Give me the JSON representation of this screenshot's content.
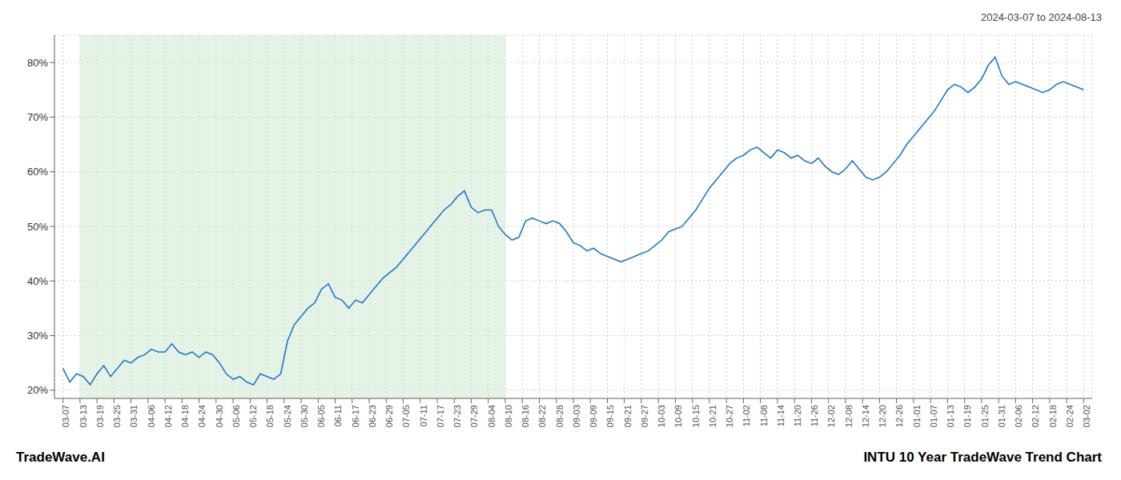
{
  "chart_data": {
    "type": "line",
    "title": "INTU 10 Year TradeWave Trend Chart",
    "subtitle": "2024-03-07 to 2024-08-13",
    "annotations": [
      "TradeWave.AI"
    ],
    "color": "#2176c7",
    "grid": true,
    "shade": {
      "x": [
        1,
        26
      ],
      "color": "#d5ecd9"
    },
    "xlim": [
      -0.5,
      60.5
    ],
    "xticks": [
      {
        "value": 0,
        "label": "03-07"
      },
      {
        "value": 1,
        "label": "03-13"
      },
      {
        "value": 2,
        "label": "03-19"
      },
      {
        "value": 3,
        "label": "03-25"
      },
      {
        "value": 4,
        "label": "03-31"
      },
      {
        "value": 5,
        "label": "04-06"
      },
      {
        "value": 6,
        "label": "04-12"
      },
      {
        "value": 7,
        "label": "04-18"
      },
      {
        "value": 8,
        "label": "04-24"
      },
      {
        "value": 9,
        "label": "04-30"
      },
      {
        "value": 10,
        "label": "05-06"
      },
      {
        "value": 11,
        "label": "05-12"
      },
      {
        "value": 12,
        "label": "05-18"
      },
      {
        "value": 13,
        "label": "05-24"
      },
      {
        "value": 14,
        "label": "05-30"
      },
      {
        "value": 15,
        "label": "06-05"
      },
      {
        "value": 16,
        "label": "06-11"
      },
      {
        "value": 17,
        "label": "06-17"
      },
      {
        "value": 18,
        "label": "06-23"
      },
      {
        "value": 19,
        "label": "06-29"
      },
      {
        "value": 20,
        "label": "07-05"
      },
      {
        "value": 21,
        "label": "07-11"
      },
      {
        "value": 22,
        "label": "07-17"
      },
      {
        "value": 23,
        "label": "07-23"
      },
      {
        "value": 24,
        "label": "07-29"
      },
      {
        "value": 25,
        "label": "08-04"
      },
      {
        "value": 26,
        "label": "08-10"
      },
      {
        "value": 27,
        "label": "08-16"
      },
      {
        "value": 28,
        "label": "08-22"
      },
      {
        "value": 29,
        "label": "08-28"
      },
      {
        "value": 30,
        "label": "09-03"
      },
      {
        "value": 31,
        "label": "09-09"
      },
      {
        "value": 32,
        "label": "09-15"
      },
      {
        "value": 33,
        "label": "09-21"
      },
      {
        "value": 34,
        "label": "09-27"
      },
      {
        "value": 35,
        "label": "10-03"
      },
      {
        "value": 36,
        "label": "10-09"
      },
      {
        "value": 37,
        "label": "10-15"
      },
      {
        "value": 38,
        "label": "10-21"
      },
      {
        "value": 39,
        "label": "10-27"
      },
      {
        "value": 40,
        "label": "11-02"
      },
      {
        "value": 41,
        "label": "11-08"
      },
      {
        "value": 42,
        "label": "11-14"
      },
      {
        "value": 43,
        "label": "11-20"
      },
      {
        "value": 44,
        "label": "11-26"
      },
      {
        "value": 45,
        "label": "12-02"
      },
      {
        "value": 46,
        "label": "12-08"
      },
      {
        "value": 47,
        "label": "12-14"
      },
      {
        "value": 48,
        "label": "12-20"
      },
      {
        "value": 49,
        "label": "12-26"
      },
      {
        "value": 50,
        "label": "01-01"
      },
      {
        "value": 51,
        "label": "01-07"
      },
      {
        "value": 52,
        "label": "01-13"
      },
      {
        "value": 53,
        "label": "01-19"
      },
      {
        "value": 54,
        "label": "01-25"
      },
      {
        "value": 55,
        "label": "01-31"
      },
      {
        "value": 56,
        "label": "02-06"
      },
      {
        "value": 57,
        "label": "02-12"
      },
      {
        "value": 58,
        "label": "02-18"
      },
      {
        "value": 59,
        "label": "02-24"
      },
      {
        "value": 60,
        "label": "03-02"
      }
    ],
    "ylim": [
      18.5,
      85
    ],
    "yticks": [
      {
        "value": 20,
        "label": "20%"
      },
      {
        "value": 30,
        "label": "30%"
      },
      {
        "value": 40,
        "label": "40%"
      },
      {
        "value": 50,
        "label": "50%"
      },
      {
        "value": 60,
        "label": "60%"
      },
      {
        "value": 70,
        "label": "70%"
      },
      {
        "value": 80,
        "label": "80%"
      }
    ],
    "x": [
      0,
      0.4,
      0.8,
      1.2,
      1.6,
      2,
      2.4,
      2.8,
      3.2,
      3.6,
      4,
      4.4,
      4.8,
      5.2,
      5.6,
      6,
      6.4,
      6.8,
      7.2,
      7.6,
      8,
      8.4,
      8.8,
      9.2,
      9.6,
      10,
      10.4,
      10.8,
      11.2,
      11.6,
      12,
      12.4,
      12.8,
      13.2,
      13.6,
      14,
      14.4,
      14.8,
      15.2,
      15.6,
      16,
      16.4,
      16.8,
      17.2,
      17.6,
      18,
      18.4,
      18.8,
      19.2,
      19.6,
      20,
      20.4,
      20.8,
      21.2,
      21.6,
      22,
      22.4,
      22.8,
      23.2,
      23.6,
      24,
      24.4,
      24.8,
      25.2,
      25.6,
      26,
      26.4,
      26.8,
      27.2,
      27.6,
      28,
      28.4,
      28.8,
      29.2,
      29.6,
      30,
      30.4,
      30.8,
      31.2,
      31.6,
      32,
      32.4,
      32.8,
      33.2,
      33.6,
      34,
      34.4,
      34.8,
      35.2,
      35.6,
      36,
      36.4,
      36.8,
      37.2,
      37.6,
      38,
      38.4,
      38.8,
      39.2,
      39.6,
      40,
      40.4,
      40.8,
      41.2,
      41.6,
      42,
      42.4,
      42.8,
      43.2,
      43.6,
      44,
      44.4,
      44.8,
      45.2,
      45.6,
      46,
      46.4,
      46.8,
      47.2,
      47.6,
      48,
      48.4,
      48.8,
      49.2,
      49.6,
      50,
      50.4,
      50.8,
      51.2,
      51.6,
      52,
      52.4,
      52.8,
      53.2,
      53.6,
      54,
      54.4,
      54.8,
      55.2,
      55.6,
      56,
      56.4,
      56.8,
      57.2,
      57.6,
      58,
      58.4,
      58.8,
      59.2,
      59.6,
      60
    ],
    "values": [
      24.0,
      21.5,
      23.0,
      22.5,
      21.0,
      23.0,
      24.5,
      22.5,
      24.0,
      25.5,
      25.0,
      26.0,
      26.5,
      27.5,
      27.0,
      27.0,
      28.5,
      27.0,
      26.5,
      27.0,
      26.0,
      27.0,
      26.5,
      25.0,
      23.0,
      22.0,
      22.5,
      21.5,
      21.0,
      23.0,
      22.5,
      22.0,
      23.0,
      29.0,
      32.0,
      33.5,
      35.0,
      36.0,
      38.5,
      39.5,
      37.0,
      36.5,
      35.0,
      36.5,
      36.0,
      37.5,
      39.0,
      40.5,
      41.5,
      42.5,
      44.0,
      45.5,
      47.0,
      48.5,
      50.0,
      51.5,
      53.0,
      54.0,
      55.5,
      56.5,
      53.5,
      52.5,
      53.0,
      53.0,
      50.0,
      48.5,
      47.5,
      48.0,
      51.0,
      51.5,
      51.0,
      50.5,
      51.0,
      50.5,
      49.0,
      47.0,
      46.5,
      45.5,
      46.0,
      45.0,
      44.5,
      44.0,
      43.5,
      44.0,
      44.5,
      45.0,
      45.5,
      46.5,
      47.5,
      49.0,
      49.5,
      50.0,
      51.5,
      53.0,
      55.0,
      57.0,
      58.5,
      60.0,
      61.5,
      62.5,
      63.0,
      64.0,
      64.5,
      63.5,
      62.5,
      64.0,
      63.5,
      62.5,
      63.0,
      62.0,
      61.5,
      62.5,
      61.0,
      60.0,
      59.5,
      60.5,
      62.0,
      60.5,
      59.0,
      58.5,
      59.0,
      60.0,
      61.5,
      63.0,
      65.0,
      66.5,
      68.0,
      69.5,
      71.0,
      73.0,
      75.0,
      76.0,
      75.5,
      74.5,
      75.5,
      77.0,
      79.5,
      81.0,
      77.5,
      76.0,
      76.5,
      76.0,
      75.5,
      75.0,
      74.5,
      75.0,
      76.0,
      76.5,
      76.0,
      75.5,
      75.0
    ]
  }
}
